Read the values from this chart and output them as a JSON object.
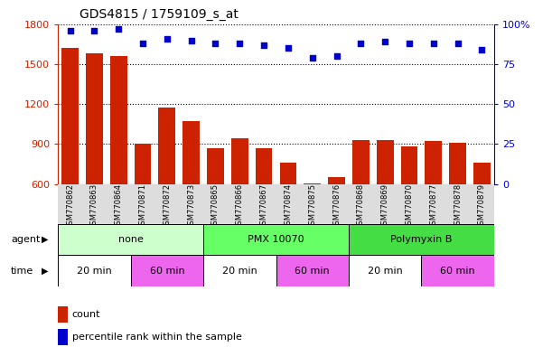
{
  "title": "GDS4815 / 1759109_s_at",
  "samples": [
    "GSM770862",
    "GSM770863",
    "GSM770864",
    "GSM770871",
    "GSM770872",
    "GSM770873",
    "GSM770865",
    "GSM770866",
    "GSM770867",
    "GSM770874",
    "GSM770875",
    "GSM770876",
    "GSM770868",
    "GSM770869",
    "GSM770870",
    "GSM770877",
    "GSM770878",
    "GSM770879"
  ],
  "counts": [
    1620,
    1580,
    1560,
    900,
    1175,
    1075,
    870,
    940,
    870,
    760,
    605,
    650,
    930,
    930,
    880,
    920,
    910,
    760
  ],
  "percentiles": [
    96,
    96,
    97,
    88,
    91,
    90,
    88,
    88,
    87,
    85,
    79,
    80,
    88,
    89,
    88,
    88,
    88,
    84
  ],
  "bar_color": "#cc2200",
  "dot_color": "#0000cc",
  "ylim_left": [
    600,
    1800
  ],
  "ylim_right": [
    0,
    100
  ],
  "yticks_left": [
    600,
    900,
    1200,
    1500,
    1800
  ],
  "yticks_right": [
    0,
    25,
    50,
    75,
    100
  ],
  "yticklabels_right": [
    "0",
    "25",
    "50",
    "75",
    "100%"
  ],
  "agent_groups": [
    {
      "label": "none",
      "start": 0,
      "end": 6,
      "color": "#ccffcc"
    },
    {
      "label": "PMX 10070",
      "start": 6,
      "end": 12,
      "color": "#66ff66"
    },
    {
      "label": "Polymyxin B",
      "start": 12,
      "end": 18,
      "color": "#44dd44"
    }
  ],
  "time_groups": [
    {
      "label": "20 min",
      "start": 0,
      "end": 3,
      "color": "#ffffff"
    },
    {
      "label": "60 min",
      "start": 3,
      "end": 6,
      "color": "#ee66ee"
    },
    {
      "label": "20 min",
      "start": 6,
      "end": 9,
      "color": "#ffffff"
    },
    {
      "label": "60 min",
      "start": 9,
      "end": 12,
      "color": "#ee66ee"
    },
    {
      "label": "20 min",
      "start": 12,
      "end": 15,
      "color": "#ffffff"
    },
    {
      "label": "60 min",
      "start": 15,
      "end": 18,
      "color": "#ee66ee"
    }
  ],
  "legend_count_color": "#cc2200",
  "legend_dot_color": "#0000cc",
  "sample_bg_color": "#dddddd",
  "agent_label": "agent",
  "time_label": "time"
}
